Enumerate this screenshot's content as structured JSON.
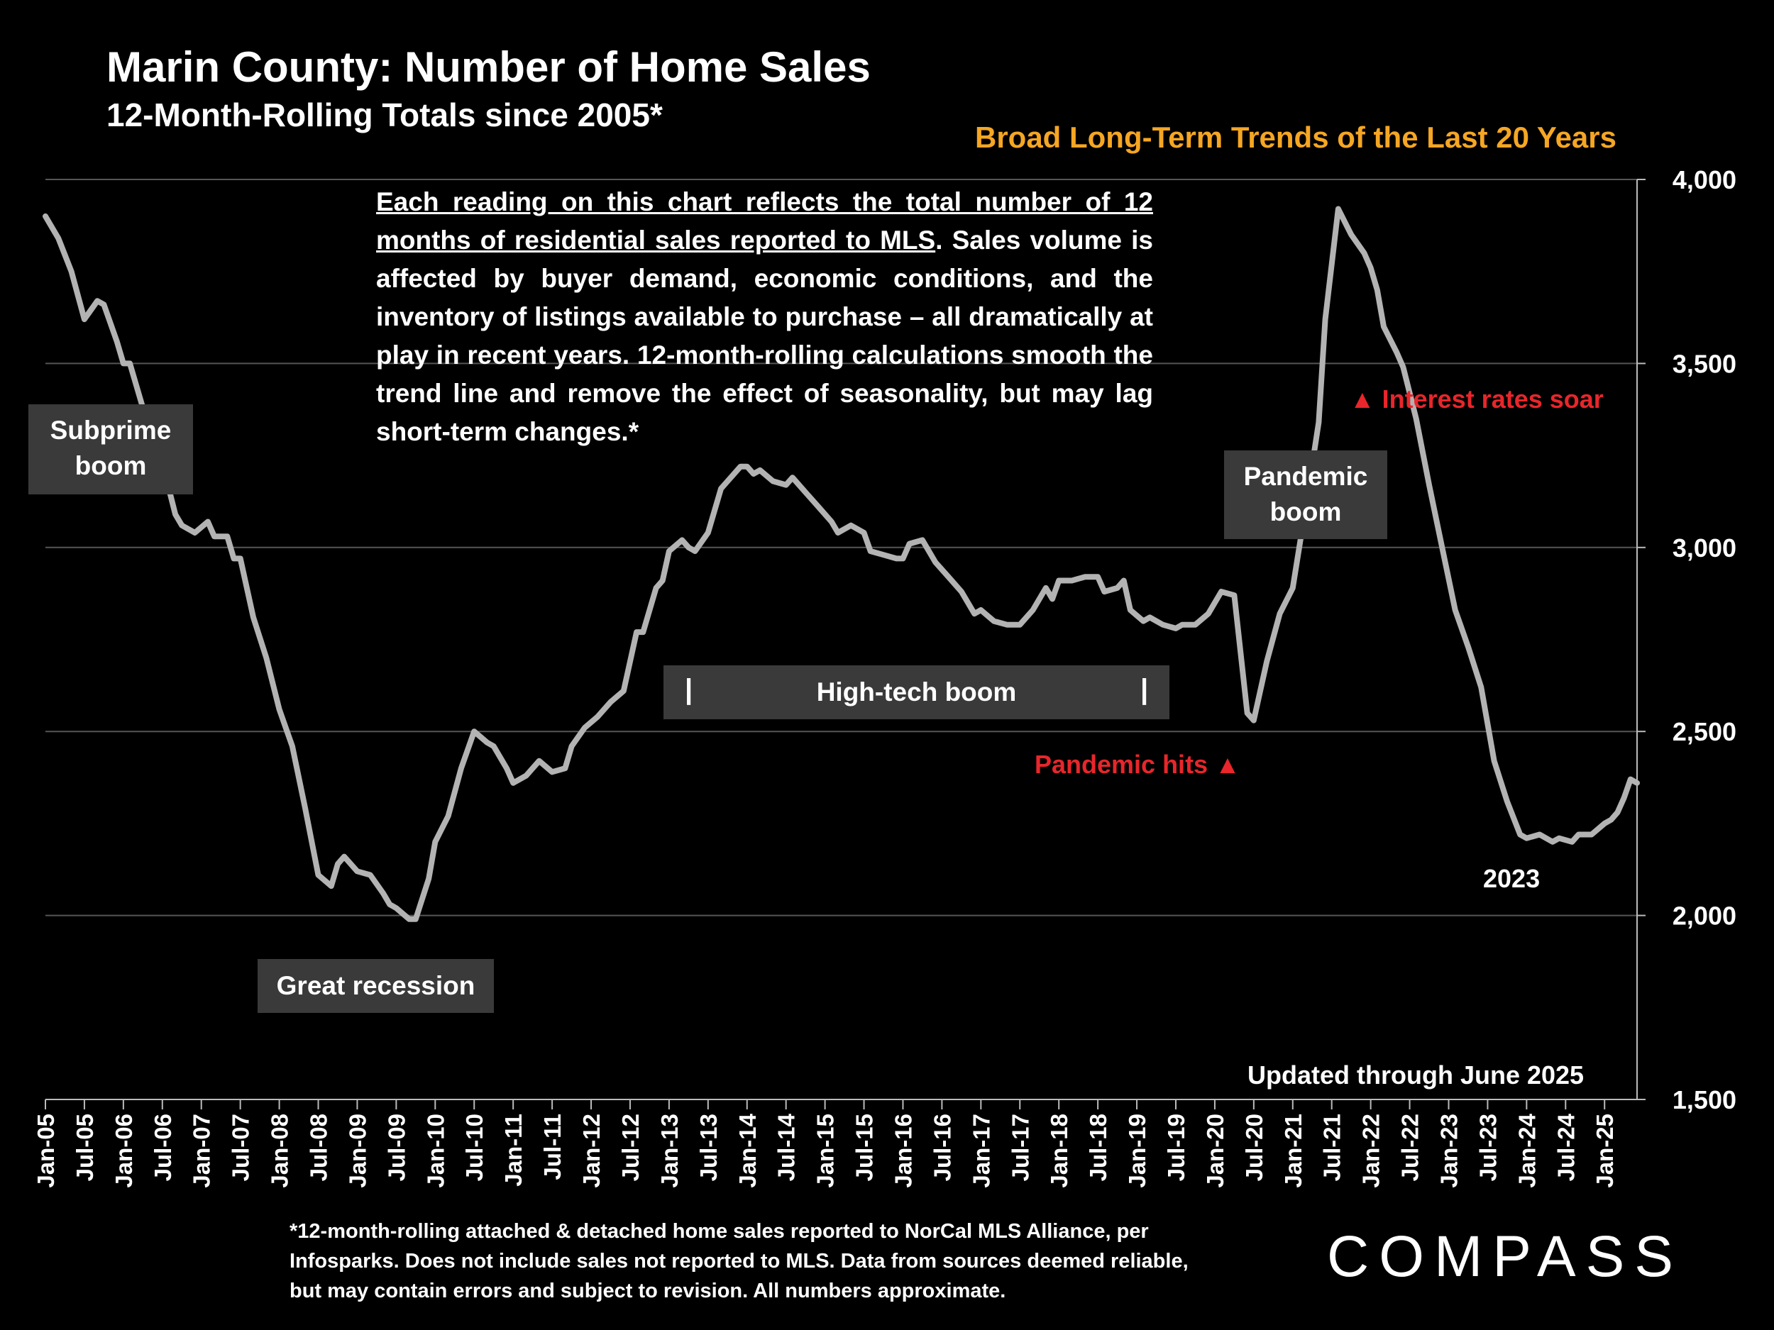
{
  "header": {
    "title": "Marin County:  Number of Home Sales",
    "subtitle": "12-Month-Rolling Totals since 2005*",
    "trend_title": "Broad Long-Term Trends of the Last 20 Years"
  },
  "description": {
    "underlined": "Each reading on this chart reflects the total number of 12 months of residential sales reported to MLS",
    "rest": ". Sales volume is affected by buyer demand, economic conditions, and the inventory of listings available to purchase – all dramatically at play in recent years. 12-month-rolling calculations smooth the trend line and remove the effect of seasonality, but may lag short-term changes.*"
  },
  "annotations": {
    "subprime": "Subprime boom",
    "great_recession": "Great recession",
    "high_tech": "High-tech boom",
    "high_tech_tick": "|",
    "pandemic_boom": "Pandemic boom",
    "pandemic_hits": "Pandemic hits ▲",
    "rates_soar": "▲ Interest rates soar",
    "year_2023": "2023",
    "updated": "Updated through June 2025"
  },
  "footnote": "*12-month-rolling attached & detached home sales reported to NorCal MLS Alliance, per Infosparks. Does not include sales not reported to MLS. Data from sources deemed reliable, but may contain errors and subject to revision. All numbers approximate.",
  "logo": "COMPASS",
  "colors": {
    "background": "#000000",
    "line": "#b3b3b3",
    "grid": "#555555",
    "accent": "#f5a623",
    "alert": "#e8262b",
    "box": "#3a3a3a"
  },
  "chart_data": {
    "type": "line",
    "title": "Marin County:  Number of Home Sales",
    "xlabel": "",
    "ylabel": "",
    "ylim": [
      1500,
      4000
    ],
    "yticks": [
      "1,500",
      "2,000",
      "2,500",
      "3,000",
      "3,500",
      "4,000"
    ],
    "ytick_values": [
      1500,
      2000,
      2500,
      3000,
      3500,
      4000
    ],
    "grid": true,
    "axis_side": "right",
    "x_tick_labels": [
      "Jan-05",
      "Jul-05",
      "Jan-06",
      "Jul-06",
      "Jan-07",
      "Jul-07",
      "Jan-08",
      "Jul-08",
      "Jan-09",
      "Jul-09",
      "Jan-10",
      "Jul-10",
      "Jan-11",
      "Jul-11",
      "Jan-12",
      "Jul-12",
      "Jan-13",
      "Jul-13",
      "Jan-14",
      "Jul-14",
      "Jan-15",
      "Jul-15",
      "Jan-16",
      "Jul-16",
      "Jan-17",
      "Jul-17",
      "Jan-18",
      "Jul-18",
      "Jan-19",
      "Jul-19",
      "Jan-20",
      "Jul-20",
      "Jan-21",
      "Jul-21",
      "Jan-22",
      "Jul-22",
      "Jan-23",
      "Jul-23",
      "Jan-24",
      "Jul-24",
      "Jan-25"
    ],
    "x_range": [
      "2005-01",
      "2025-06"
    ],
    "series": [
      {
        "name": "",
        "points": [
          [
            "2005-01",
            3900
          ],
          [
            "2005-03",
            3840
          ],
          [
            "2005-05",
            3750
          ],
          [
            "2005-07",
            3620
          ],
          [
            "2005-09",
            3670
          ],
          [
            "2005-10",
            3660
          ],
          [
            "2005-12",
            3560
          ],
          [
            "2006-01",
            3500
          ],
          [
            "2006-02",
            3500
          ],
          [
            "2006-04",
            3380
          ],
          [
            "2006-06",
            3280
          ],
          [
            "2006-08",
            3160
          ],
          [
            "2006-09",
            3090
          ],
          [
            "2006-10",
            3060
          ],
          [
            "2006-12",
            3040
          ],
          [
            "2007-02",
            3070
          ],
          [
            "2007-03",
            3030
          ],
          [
            "2007-05",
            3030
          ],
          [
            "2007-06",
            2970
          ],
          [
            "2007-07",
            2970
          ],
          [
            "2007-09",
            2810
          ],
          [
            "2007-11",
            2700
          ],
          [
            "2008-01",
            2560
          ],
          [
            "2008-03",
            2460
          ],
          [
            "2008-05",
            2290
          ],
          [
            "2008-07",
            2110
          ],
          [
            "2008-09",
            2080
          ],
          [
            "2008-10",
            2140
          ],
          [
            "2008-11",
            2160
          ],
          [
            "2009-01",
            2120
          ],
          [
            "2009-03",
            2110
          ],
          [
            "2009-05",
            2060
          ],
          [
            "2009-06",
            2030
          ],
          [
            "2009-07",
            2020
          ],
          [
            "2009-09",
            1990
          ],
          [
            "2009-10",
            1990
          ],
          [
            "2009-12",
            2100
          ],
          [
            "2010-01",
            2200
          ],
          [
            "2010-03",
            2270
          ],
          [
            "2010-05",
            2400
          ],
          [
            "2010-07",
            2500
          ],
          [
            "2010-09",
            2470
          ],
          [
            "2010-10",
            2460
          ],
          [
            "2010-12",
            2400
          ],
          [
            "2011-01",
            2360
          ],
          [
            "2011-03",
            2380
          ],
          [
            "2011-05",
            2420
          ],
          [
            "2011-07",
            2390
          ],
          [
            "2011-09",
            2400
          ],
          [
            "2011-10",
            2460
          ],
          [
            "2011-12",
            2510
          ],
          [
            "2012-02",
            2540
          ],
          [
            "2012-04",
            2580
          ],
          [
            "2012-06",
            2610
          ],
          [
            "2012-08",
            2770
          ],
          [
            "2012-09",
            2770
          ],
          [
            "2012-11",
            2890
          ],
          [
            "2012-12",
            2910
          ],
          [
            "2013-01",
            2990
          ],
          [
            "2013-03",
            3020
          ],
          [
            "2013-04",
            3000
          ],
          [
            "2013-05",
            2990
          ],
          [
            "2013-07",
            3040
          ],
          [
            "2013-09",
            3160
          ],
          [
            "2013-10",
            3180
          ],
          [
            "2013-12",
            3220
          ],
          [
            "2014-01",
            3220
          ],
          [
            "2014-02",
            3200
          ],
          [
            "2014-03",
            3210
          ],
          [
            "2014-05",
            3180
          ],
          [
            "2014-07",
            3170
          ],
          [
            "2014-08",
            3190
          ],
          [
            "2014-10",
            3150
          ],
          [
            "2014-12",
            3110
          ],
          [
            "2015-02",
            3070
          ],
          [
            "2015-03",
            3040
          ],
          [
            "2015-05",
            3060
          ],
          [
            "2015-07",
            3040
          ],
          [
            "2015-08",
            2990
          ],
          [
            "2015-10",
            2980
          ],
          [
            "2015-12",
            2970
          ],
          [
            "2016-01",
            2970
          ],
          [
            "2016-02",
            3010
          ],
          [
            "2016-04",
            3020
          ],
          [
            "2016-06",
            2960
          ],
          [
            "2016-08",
            2920
          ],
          [
            "2016-10",
            2880
          ],
          [
            "2016-12",
            2820
          ],
          [
            "2017-01",
            2830
          ],
          [
            "2017-03",
            2800
          ],
          [
            "2017-05",
            2790
          ],
          [
            "2017-07",
            2790
          ],
          [
            "2017-09",
            2830
          ],
          [
            "2017-11",
            2890
          ],
          [
            "2017-12",
            2860
          ],
          [
            "2018-01",
            2910
          ],
          [
            "2018-03",
            2910
          ],
          [
            "2018-05",
            2920
          ],
          [
            "2018-07",
            2920
          ],
          [
            "2018-08",
            2880
          ],
          [
            "2018-10",
            2890
          ],
          [
            "2018-11",
            2910
          ],
          [
            "2018-12",
            2830
          ],
          [
            "2019-02",
            2800
          ],
          [
            "2019-03",
            2810
          ],
          [
            "2019-05",
            2790
          ],
          [
            "2019-07",
            2780
          ],
          [
            "2019-08",
            2790
          ],
          [
            "2019-10",
            2790
          ],
          [
            "2019-12",
            2820
          ],
          [
            "2020-02",
            2880
          ],
          [
            "2020-04",
            2870
          ],
          [
            "2020-06",
            2550
          ],
          [
            "2020-07",
            2530
          ],
          [
            "2020-09",
            2690
          ],
          [
            "2020-11",
            2820
          ],
          [
            "2021-01",
            2890
          ],
          [
            "2021-03",
            3110
          ],
          [
            "2021-05",
            3340
          ],
          [
            "2021-06",
            3620
          ],
          [
            "2021-08",
            3920
          ],
          [
            "2021-10",
            3850
          ],
          [
            "2021-12",
            3800
          ],
          [
            "2022-01",
            3760
          ],
          [
            "2022-02",
            3700
          ],
          [
            "2022-03",
            3600
          ],
          [
            "2022-05",
            3530
          ],
          [
            "2022-06",
            3490
          ],
          [
            "2022-08",
            3350
          ],
          [
            "2022-10",
            3170
          ],
          [
            "2022-12",
            3000
          ],
          [
            "2023-02",
            2830
          ],
          [
            "2023-04",
            2730
          ],
          [
            "2023-06",
            2620
          ],
          [
            "2023-08",
            2420
          ],
          [
            "2023-10",
            2310
          ],
          [
            "2023-12",
            2220
          ],
          [
            "2024-01",
            2210
          ],
          [
            "2024-03",
            2220
          ],
          [
            "2024-05",
            2200
          ],
          [
            "2024-06",
            2210
          ],
          [
            "2024-08",
            2200
          ],
          [
            "2024-09",
            2220
          ],
          [
            "2024-11",
            2220
          ],
          [
            "2025-01",
            2250
          ],
          [
            "2025-02",
            2260
          ],
          [
            "2025-03",
            2280
          ],
          [
            "2025-04",
            2320
          ],
          [
            "2025-05",
            2370
          ],
          [
            "2025-06",
            2360
          ]
        ]
      }
    ]
  }
}
